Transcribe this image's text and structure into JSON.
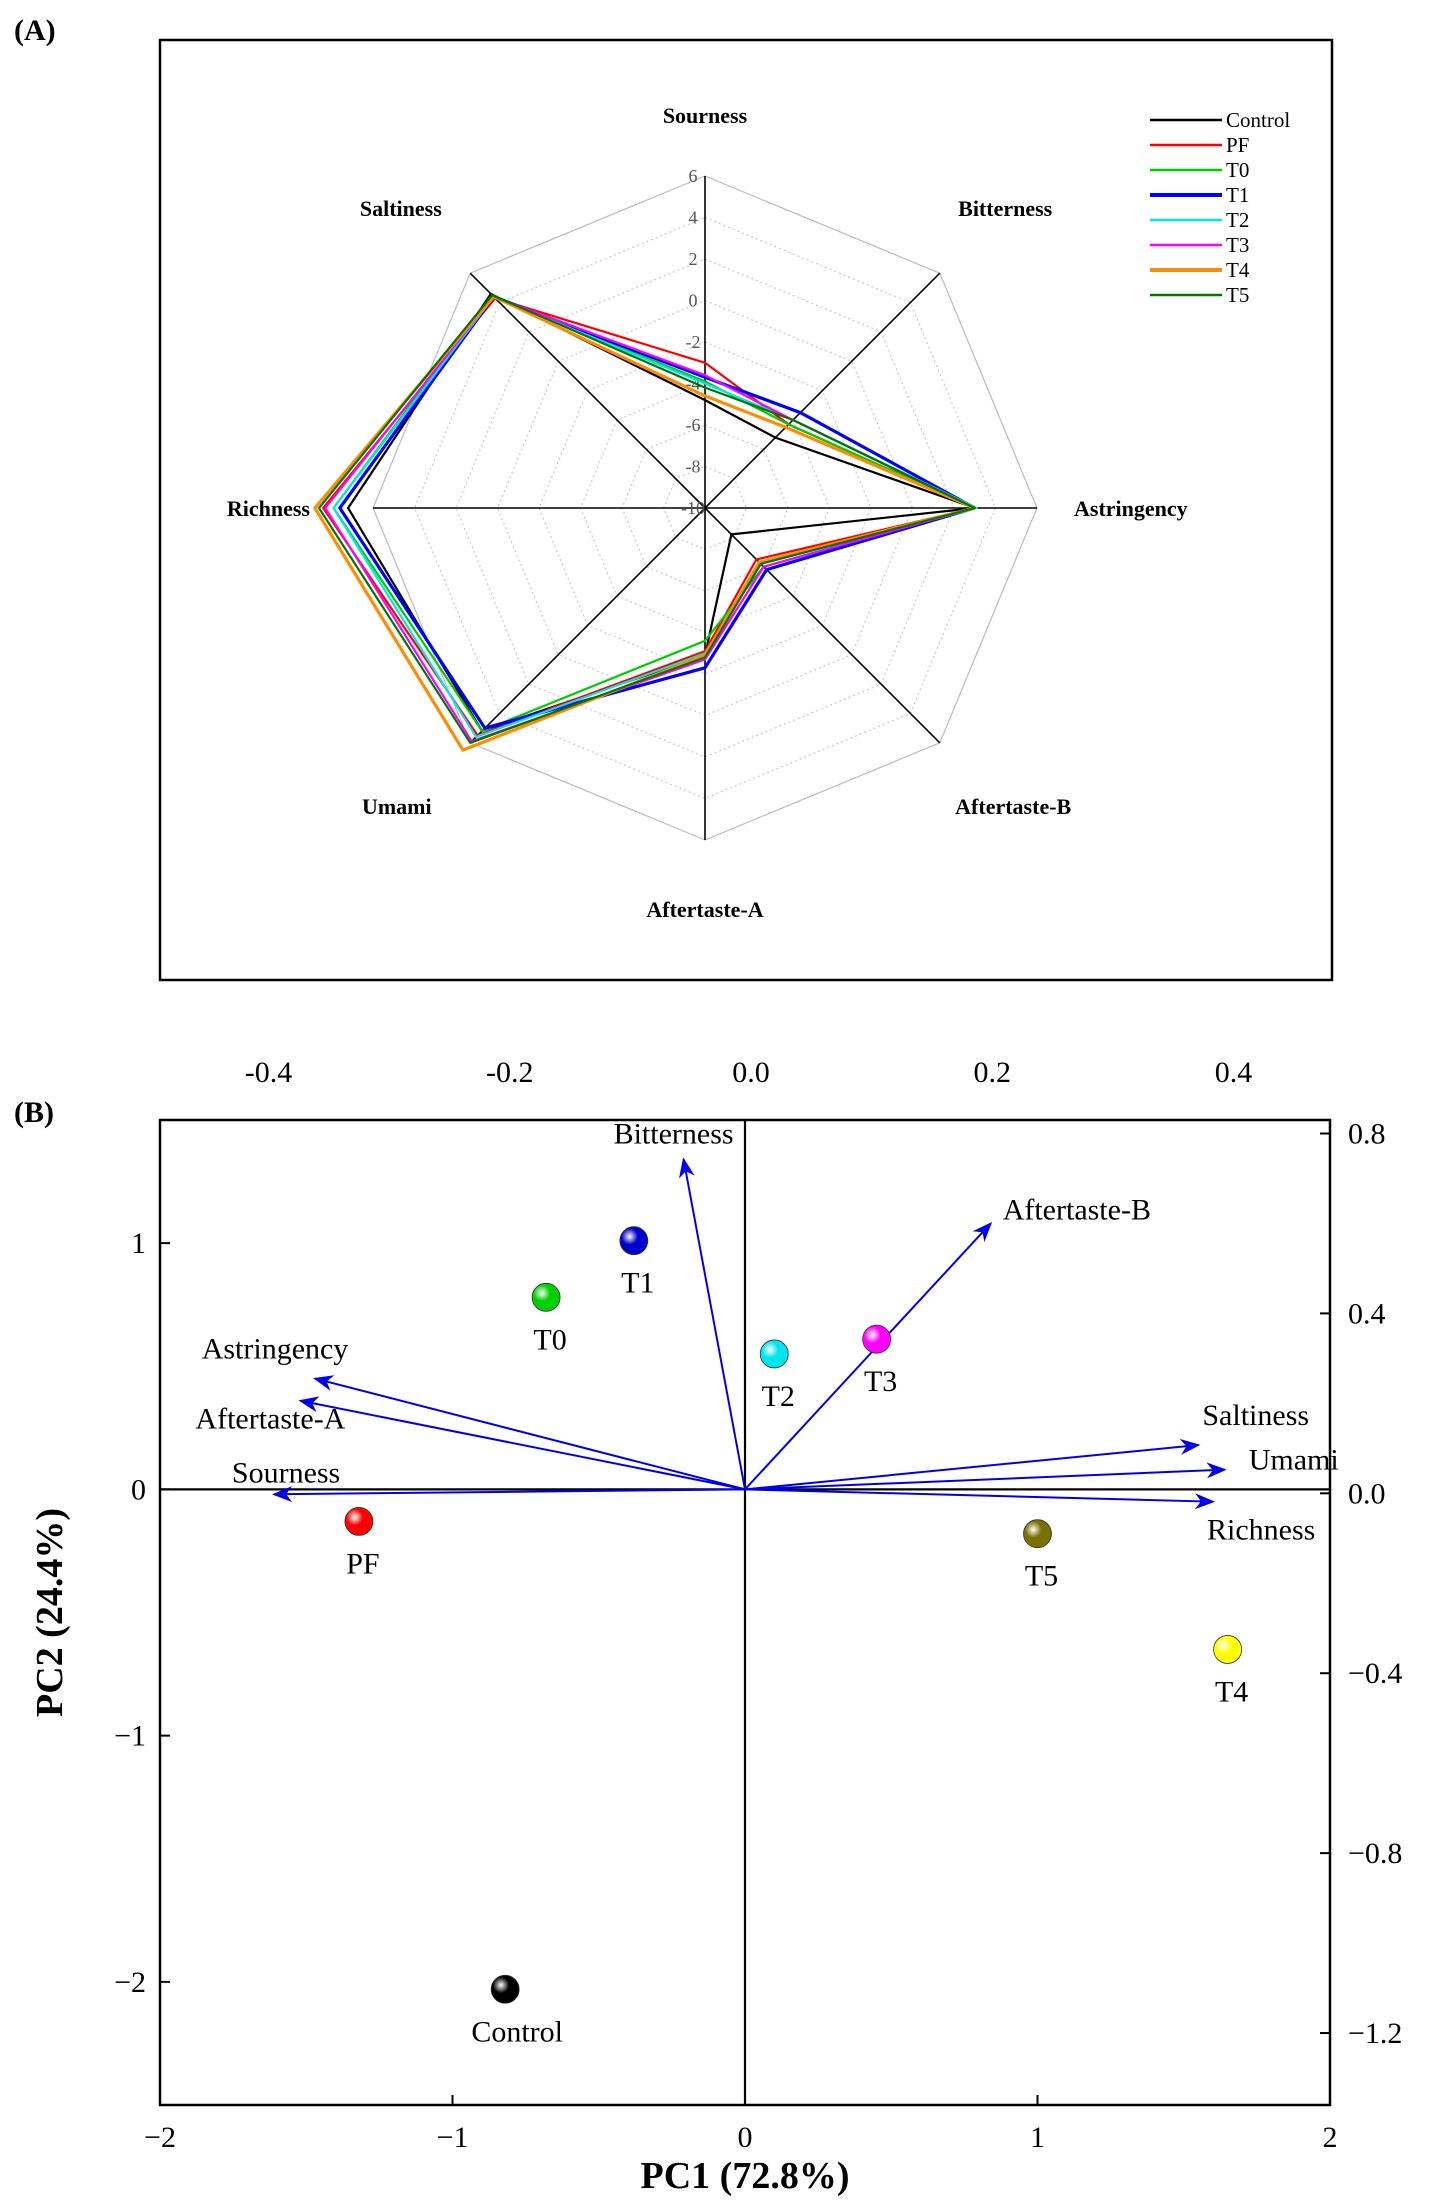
{
  "panel_a": {
    "label": "(A)",
    "chart_data": {
      "type": "radar",
      "axes": [
        "Sourness",
        "Bitterness",
        "Astringency",
        "Aftertaste-B",
        "Aftertaste-A",
        "Umami",
        "Richness",
        "Saltiness"
      ],
      "radial_ticks": [
        "6",
        "4",
        "2",
        "0",
        "-2",
        "-4",
        "-6",
        "-8",
        "-10"
      ],
      "rlim": [
        -10,
        6
      ],
      "series": [
        {
          "name": "Control",
          "color": "#000000",
          "values": [
            -4.8,
            -5.2,
            3.0,
            -8.2,
            -2.9,
            5.2,
            7.2,
            4.6
          ]
        },
        {
          "name": "PF",
          "color": "#ff0000",
          "values": [
            -3.0,
            -4.3,
            3.0,
            -6.5,
            -3.1,
            5.5,
            8.4,
            4.3
          ]
        },
        {
          "name": "T0",
          "color": "#00cc00",
          "values": [
            -3.9,
            -4.3,
            3.0,
            -6.0,
            -3.6,
            5.2,
            7.9,
            4.5
          ]
        },
        {
          "name": "T1",
          "color": "#0000ff",
          "values": [
            -3.7,
            -3.5,
            3.0,
            -5.8,
            -2.3,
            5.0,
            7.6,
            4.4
          ]
        },
        {
          "name": "T2",
          "color": "#00e5ee",
          "values": [
            -4.0,
            -4.0,
            3.1,
            -6.2,
            -3.0,
            5.6,
            7.9,
            4.4
          ]
        },
        {
          "name": "T3",
          "color": "#ff00ff",
          "values": [
            -3.6,
            -4.0,
            3.0,
            -6.0,
            -2.7,
            5.9,
            8.3,
            4.4
          ]
        },
        {
          "name": "T4",
          "color": "#ff8c00",
          "values": [
            -4.6,
            -4.5,
            3.0,
            -6.3,
            -2.9,
            6.5,
            8.8,
            4.4
          ]
        },
        {
          "name": "T5",
          "color": "#007700",
          "values": [
            -4.2,
            -4.0,
            3.0,
            -6.2,
            -2.8,
            6.0,
            8.6,
            4.5
          ]
        }
      ]
    }
  },
  "panel_b": {
    "label": "(B)",
    "chart_data": {
      "type": "biplot",
      "xlabel": "PC1 (72.8%)",
      "ylabel": "PC2 (24.4%)",
      "xlim": [
        -2,
        2
      ],
      "ylim": [
        -2.5,
        1.5
      ],
      "xticks": [
        -2,
        -1,
        0,
        1,
        2
      ],
      "xtick_labels": [
        "−2",
        "−1",
        "0",
        "1",
        "2"
      ],
      "yticks": [
        -2,
        -1,
        0,
        1
      ],
      "ytick_labels": [
        "−2",
        "−1",
        "0",
        "1"
      ],
      "top_axis": {
        "lim": [
          -0.49,
          0.48
        ],
        "ticks": [
          -0.4,
          -0.2,
          0.0,
          0.2,
          0.4
        ],
        "tick_labels": [
          "-0.4",
          "-0.2",
          "0.0",
          "0.2",
          "0.4"
        ]
      },
      "right_axis": {
        "lim": [
          -1.36,
          0.83
        ],
        "ticks": [
          0.8,
          0.4,
          0.0,
          -0.4,
          -0.8,
          -1.2
        ],
        "tick_labels": [
          "0.8",
          "0.4",
          "0.0",
          "−0.4",
          "−0.8",
          "−1.2"
        ]
      },
      "scores": [
        {
          "name": "Control",
          "x": -0.82,
          "y": -2.03,
          "color": "#000000"
        },
        {
          "name": "PF",
          "x": -1.32,
          "y": -0.13,
          "color": "#ff0000"
        },
        {
          "name": "T0",
          "x": -0.68,
          "y": 0.78,
          "color": "#00d000"
        },
        {
          "name": "T1",
          "x": -0.38,
          "y": 1.01,
          "color": "#0000cc"
        },
        {
          "name": "T2",
          "x": 0.1,
          "y": 0.55,
          "color": "#00e5ee"
        },
        {
          "name": "T3",
          "x": 0.45,
          "y": 0.61,
          "color": "#ff00ff"
        },
        {
          "name": "T4",
          "x": 1.65,
          "y": -0.65,
          "color": "#ffff00"
        },
        {
          "name": "T5",
          "x": 1.0,
          "y": -0.18,
          "color": "#7a7000"
        }
      ],
      "loadings": [
        {
          "name": "Bitterness",
          "x": -0.21,
          "y": 1.34
        },
        {
          "name": "Aftertaste-B",
          "x": 0.84,
          "y": 1.08
        },
        {
          "name": "Astringency",
          "x": -1.47,
          "y": 0.45
        },
        {
          "name": "Aftertaste-A",
          "x": -1.52,
          "y": 0.36
        },
        {
          "name": "Sourness",
          "x": -1.61,
          "y": -0.02
        },
        {
          "name": "Saltiness",
          "x": 1.55,
          "y": 0.18
        },
        {
          "name": "Umami",
          "x": 1.64,
          "y": 0.08
        },
        {
          "name": "Richness",
          "x": 1.6,
          "y": -0.05
        }
      ]
    }
  }
}
